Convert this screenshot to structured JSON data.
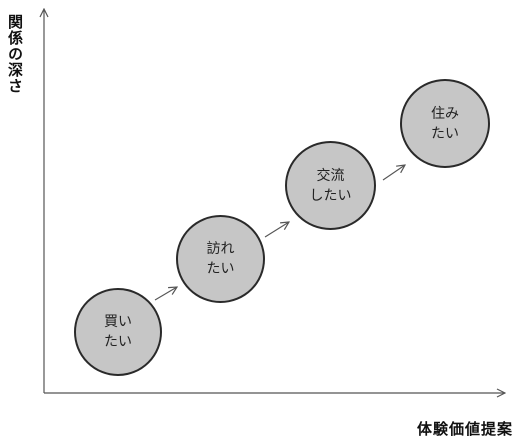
{
  "axes": {
    "y_title": "関係の深さ",
    "x_title": "体験価値提案"
  },
  "stages": [
    {
      "line1": "買い",
      "line2": "たい"
    },
    {
      "line1": "訪れ",
      "line2": "たい"
    },
    {
      "line1": "交流",
      "line2": "したい"
    },
    {
      "line1": "住み",
      "line2": "たい"
    }
  ],
  "colors": {
    "circle_fill": "#c6c6c6",
    "circle_stroke": "#2a2a2a",
    "axis": "#555555"
  }
}
